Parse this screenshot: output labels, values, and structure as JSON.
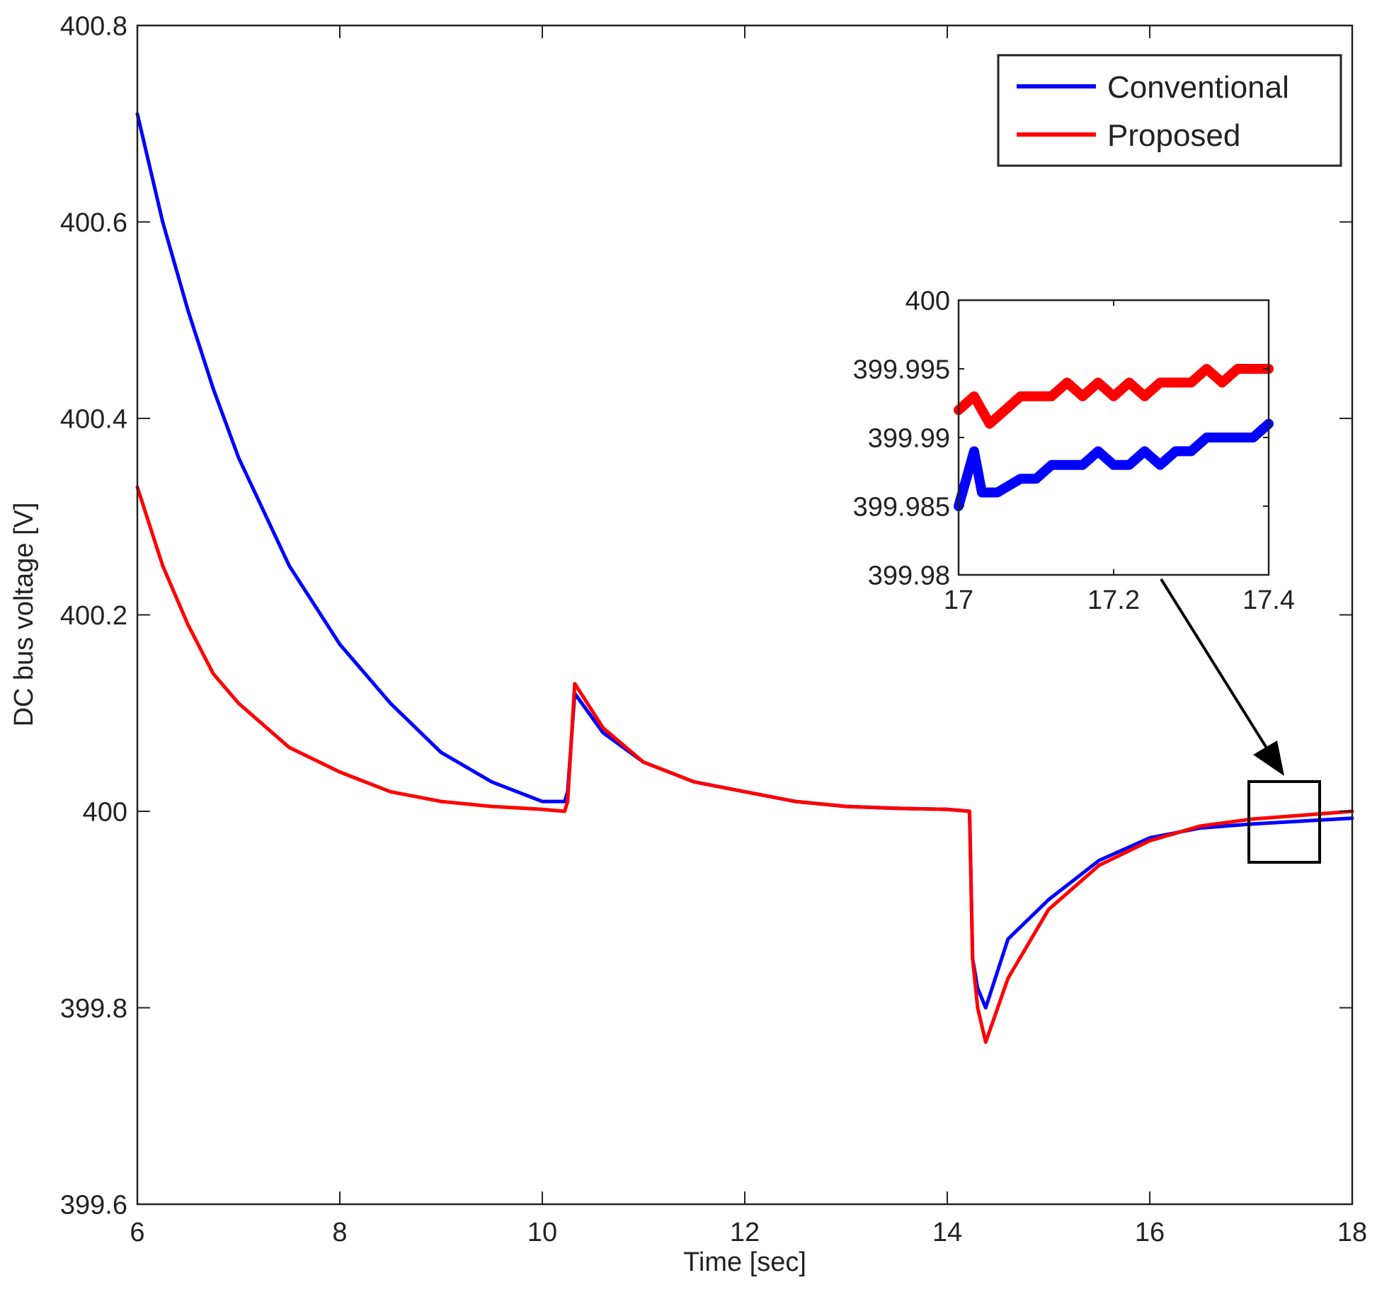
{
  "chart_data": [
    {
      "type": "line",
      "xlabel": "Time [sec]",
      "ylabel": "DC bus voltage [V]",
      "xlim": [
        6,
        18
      ],
      "ylim": [
        399.6,
        400.8
      ],
      "x_ticks": [
        6,
        8,
        10,
        12,
        14,
        16,
        18
      ],
      "y_ticks": [
        399.6,
        399.8,
        400,
        400.2,
        400.4,
        400.6,
        400.8
      ],
      "x_tick_labels": [
        "6",
        "8",
        "10",
        "12",
        "14",
        "16",
        "18"
      ],
      "y_tick_labels": [
        "399.6",
        "399.8",
        "400",
        "400.2",
        "400.4",
        "400.6",
        "400.8"
      ],
      "grid": false,
      "legend_position": "top-right",
      "series": [
        {
          "name": "Conventional",
          "color": "#0000ff",
          "x": [
            6.0,
            6.25,
            6.5,
            6.75,
            7.0,
            7.5,
            8.0,
            8.5,
            9.0,
            9.5,
            10.0,
            10.22,
            10.25,
            10.32,
            10.6,
            11.0,
            11.5,
            12.0,
            12.5,
            13.0,
            13.5,
            14.0,
            14.22,
            14.25,
            14.3,
            14.38,
            14.6,
            15.0,
            15.5,
            16.0,
            16.5,
            17.0,
            17.5,
            18.0
          ],
          "y": [
            400.71,
            400.6,
            400.51,
            400.43,
            400.36,
            400.25,
            400.17,
            400.11,
            400.06,
            400.03,
            400.01,
            400.01,
            400.02,
            400.12,
            400.08,
            400.05,
            400.03,
            400.02,
            400.01,
            400.005,
            400.003,
            400.002,
            400.0,
            399.85,
            399.82,
            399.8,
            399.87,
            399.91,
            399.95,
            399.973,
            399.983,
            399.987,
            399.99,
            399.993
          ]
        },
        {
          "name": "Proposed",
          "color": "#ff0000",
          "x": [
            6.0,
            6.25,
            6.5,
            6.75,
            7.0,
            7.5,
            8.0,
            8.5,
            9.0,
            9.5,
            10.0,
            10.22,
            10.25,
            10.32,
            10.6,
            11.0,
            11.5,
            12.0,
            12.5,
            13.0,
            13.5,
            14.0,
            14.22,
            14.25,
            14.3,
            14.38,
            14.6,
            15.0,
            15.5,
            16.0,
            16.5,
            17.0,
            17.5,
            18.0
          ],
          "y": [
            400.33,
            400.25,
            400.19,
            400.14,
            400.11,
            400.065,
            400.04,
            400.02,
            400.01,
            400.005,
            400.002,
            400.0,
            400.01,
            400.13,
            400.085,
            400.05,
            400.03,
            400.02,
            400.01,
            400.005,
            400.003,
            400.002,
            400.0,
            399.85,
            399.8,
            399.765,
            399.83,
            399.9,
            399.945,
            399.97,
            399.985,
            399.992,
            399.996,
            400.0
          ]
        }
      ]
    },
    {
      "type": "line",
      "inset": true,
      "xlim": [
        17,
        17.4
      ],
      "ylim": [
        399.98,
        400
      ],
      "x_ticks": [
        17,
        17.2,
        17.4
      ],
      "y_ticks": [
        399.98,
        399.985,
        399.99,
        399.995,
        400
      ],
      "x_tick_labels": [
        "17",
        "17.2",
        "17.4"
      ],
      "y_tick_labels": [
        "399.98",
        "399.985",
        "399.99",
        "399.995",
        "400"
      ],
      "series": [
        {
          "name": "Conventional",
          "color": "#0000ff",
          "x": [
            17.0,
            17.01,
            17.02,
            17.03,
            17.05,
            17.08,
            17.1,
            17.12,
            17.14,
            17.16,
            17.18,
            17.2,
            17.22,
            17.24,
            17.26,
            17.28,
            17.3,
            17.32,
            17.34,
            17.36,
            17.38,
            17.4
          ],
          "y": [
            399.985,
            399.987,
            399.989,
            399.986,
            399.986,
            399.987,
            399.987,
            399.988,
            399.988,
            399.988,
            399.989,
            399.988,
            399.988,
            399.989,
            399.988,
            399.989,
            399.989,
            399.99,
            399.99,
            399.99,
            399.99,
            399.991
          ]
        },
        {
          "name": "Proposed",
          "color": "#ff0000",
          "x": [
            17.0,
            17.02,
            17.04,
            17.06,
            17.08,
            17.1,
            17.12,
            17.14,
            17.16,
            17.18,
            17.2,
            17.22,
            17.24,
            17.26,
            17.28,
            17.3,
            17.32,
            17.34,
            17.36,
            17.38,
            17.4
          ],
          "y": [
            399.992,
            399.993,
            399.991,
            399.992,
            399.993,
            399.993,
            399.993,
            399.994,
            399.993,
            399.994,
            399.993,
            399.994,
            399.993,
            399.994,
            399.994,
            399.994,
            399.995,
            399.994,
            399.995,
            399.995,
            399.995
          ]
        }
      ]
    }
  ]
}
